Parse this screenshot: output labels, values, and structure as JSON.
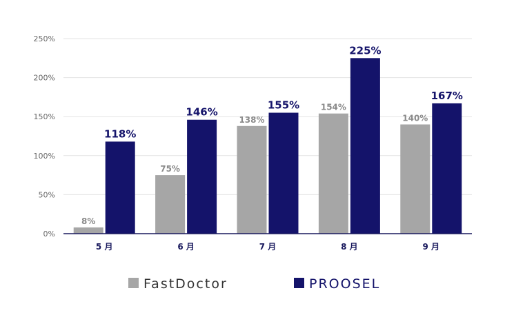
{
  "chart_data": {
    "type": "bar",
    "categories": [
      "5 月",
      "6 月",
      "7 月",
      "8 月",
      "9 月"
    ],
    "series": [
      {
        "name": "FastDoctor",
        "values": [
          8,
          75,
          138,
          154,
          140
        ],
        "labels": [
          "8%",
          "75%",
          "138%",
          "154%",
          "140%"
        ],
        "color": "#a6a6a6"
      },
      {
        "name": "PROOSEL",
        "values": [
          118,
          146,
          155,
          225,
          167
        ],
        "labels": [
          "118%",
          "146%",
          "155%",
          "225%",
          "167%"
        ],
        "color": "#14136a"
      }
    ],
    "ylim": [
      0,
      250
    ],
    "yticks": [
      0,
      50,
      100,
      150,
      200,
      250
    ],
    "ytick_labels": [
      "0%",
      "50%",
      "100%",
      "150%",
      "200%",
      "250%"
    ],
    "grid": true,
    "legend_position": "bottom"
  },
  "colors": {
    "gridline": "#e3e3e3",
    "axis": "#1a1a5e",
    "legend_text_fastdoctor": "#333333",
    "legend_text_proosel": "#14136a"
  }
}
